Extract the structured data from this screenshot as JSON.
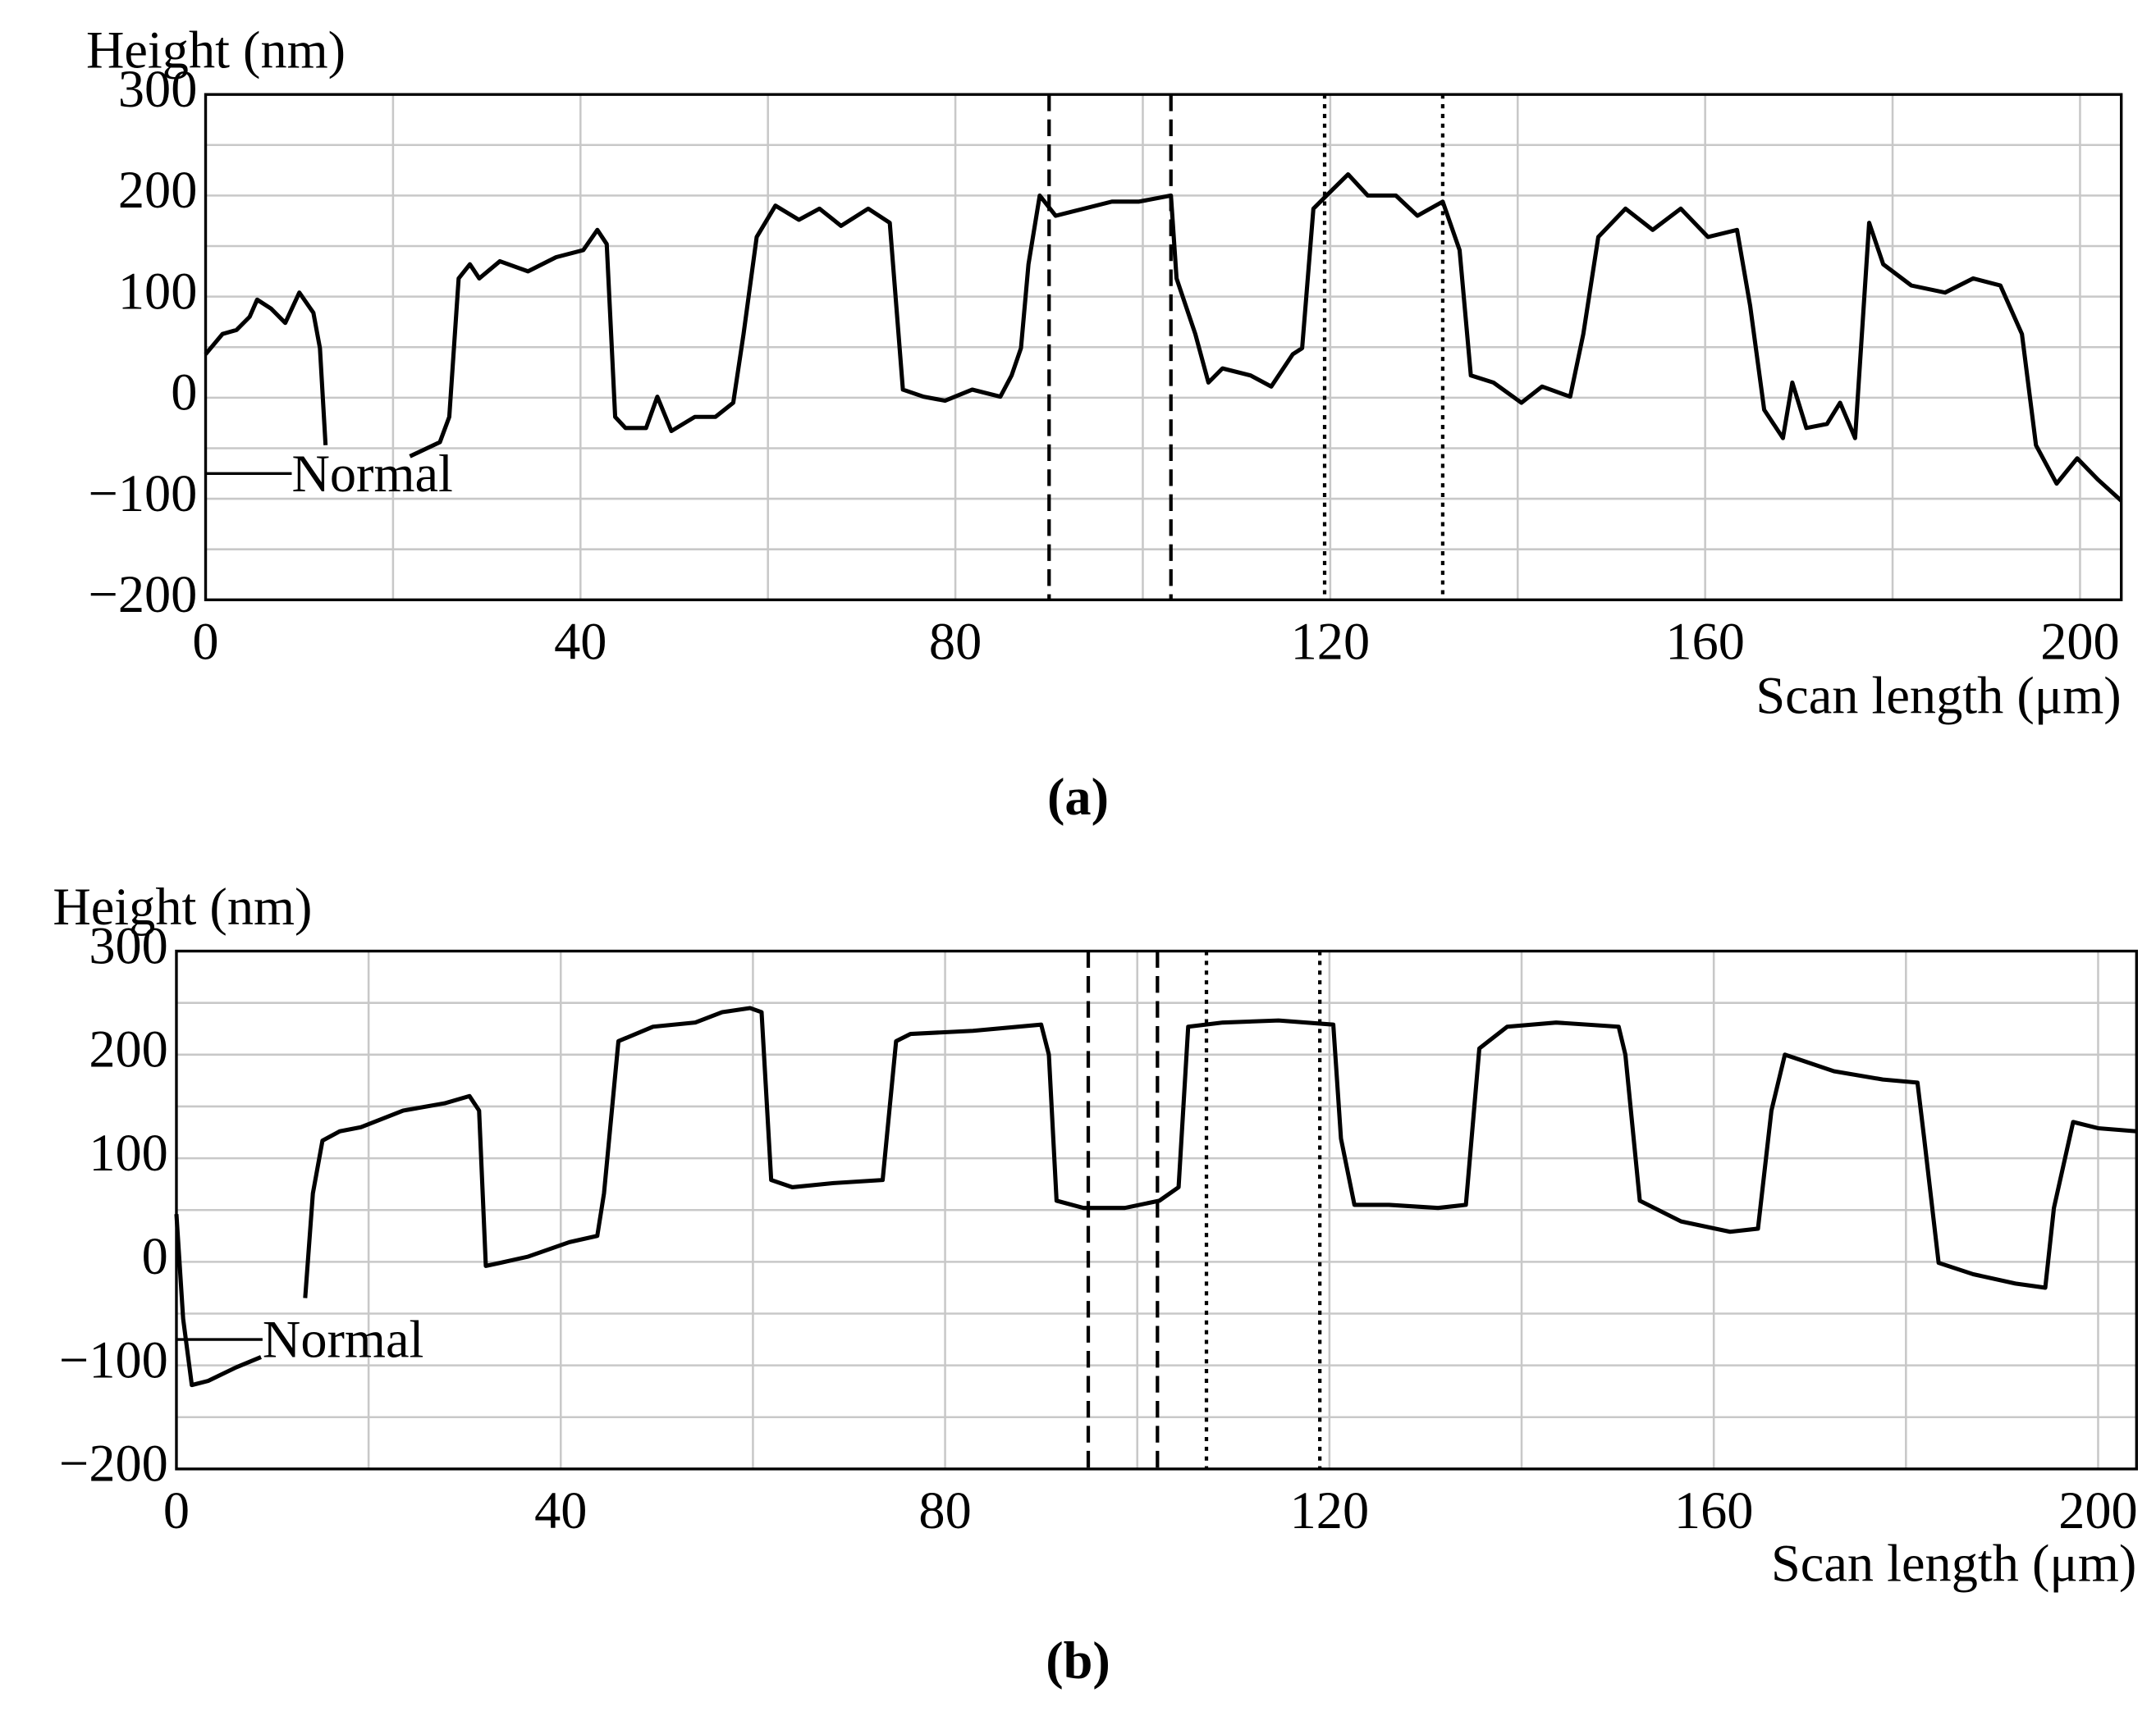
{
  "chart_data": [
    {
      "type": "line",
      "caption": "(a)",
      "ylabel": "Height (nm)",
      "xlabel": "Scan length (μm)",
      "xlim": [
        0,
        204.4
      ],
      "ylim": [
        -200,
        300
      ],
      "xticks": [
        0,
        40,
        80,
        120,
        160,
        200
      ],
      "xminor": [
        20,
        60,
        100,
        140,
        180
      ],
      "yticks": [
        300,
        200,
        100,
        0,
        {
          "value": -100,
          "label": "−100"
        },
        {
          "value": -200,
          "label": "−200"
        }
      ],
      "yminor": [
        250,
        150,
        50,
        -50,
        -150
      ],
      "grid": true,
      "legend": "left",
      "markers": [
        {
          "x": 90,
          "style": "dashed"
        },
        {
          "x": 103,
          "style": "dashed"
        },
        {
          "x": 119.4,
          "style": "dotted"
        },
        {
          "x": 132,
          "style": "dotted"
        }
      ],
      "x": [
        0,
        1.8,
        3.3,
        4.7,
        5.5,
        7,
        8.5,
        10,
        11.5,
        12.2,
        12.8,
        12.9,
        21.8,
        25,
        26,
        27,
        28.2,
        29.2,
        31.4,
        34.4,
        37.4,
        40.3,
        41.8,
        42.8,
        43.7,
        44.8,
        47,
        48.2,
        49.7,
        52.2,
        54.4,
        56.3,
        57.4,
        58.8,
        60.8,
        63.3,
        65.5,
        67.8,
        70.7,
        73,
        74.4,
        76.6,
        78.9,
        81.8,
        84.8,
        86,
        87,
        87.8,
        89,
        90.7,
        93.7,
        96.7,
        99.6,
        103,
        103.6,
        105.6,
        107,
        108.5,
        111.5,
        113.7,
        116,
        117,
        118.2,
        119.6,
        121.9,
        124,
        127,
        129.3,
        132,
        133.8,
        135,
        137.4,
        140.4,
        142.6,
        145.6,
        147,
        148.6,
        151.5,
        154.4,
        157.4,
        160.3,
        163.4,
        164.8,
        166.3,
        168.3,
        169.3,
        170.8,
        173,
        174.4,
        176,
        177.5,
        179,
        182,
        185.6,
        188.6,
        191.5,
        193.8,
        195.3,
        197.5,
        199.7,
        201.9,
        204.4
      ],
      "series": [
        {
          "name": "Normal",
          "color": "#000000",
          "values": [
            43,
            63,
            67,
            80,
            97,
            88,
            74,
            104,
            84,
            49,
            -47,
            null,
            -58,
            -44,
            -19,
            118,
            132,
            118,
            135,
            125,
            139,
            146,
            166,
            152,
            -19,
            -30,
            -30,
            1,
            -33,
            -19,
            -19,
            -5,
            63,
            159,
            190,
            176,
            187,
            170,
            187,
            173,
            8,
            1,
            -3,
            8,
            1,
            22,
            49,
            132,
            200,
            180,
            187,
            194,
            194,
            200,
            118,
            63,
            15,
            29,
            22,
            11,
            43,
            49,
            187,
            200,
            221,
            200,
            200,
            180,
            194,
            146,
            22,
            15,
            -5,
            11,
            1,
            63,
            159,
            187,
            166,
            187,
            159,
            166,
            91,
            -12,
            -40,
            15,
            -30,
            -26,
            -5,
            -40,
            173,
            132,
            111,
            104,
            118,
            111,
            63,
            -47,
            -85,
            -60,
            -81,
            -102
          ]
        }
      ]
    },
    {
      "type": "line",
      "caption": "(b)",
      "ylabel": "Height (nm)",
      "xlabel": "Scan length (μm)",
      "xlim": [
        0,
        204
      ],
      "ylim": [
        -200,
        300
      ],
      "xticks": [
        0,
        40,
        80,
        120,
        160,
        200
      ],
      "xminor": [
        20,
        60,
        100,
        140,
        180
      ],
      "yticks": [
        300,
        200,
        100,
        0,
        {
          "value": -100,
          "label": "−100"
        },
        {
          "value": -200,
          "label": "−200"
        }
      ],
      "yminor": [
        250,
        150,
        50,
        -50,
        -150
      ],
      "grid": true,
      "legend": "left",
      "markers": [
        {
          "x": 94.9,
          "style": "dashed"
        },
        {
          "x": 102.1,
          "style": "dashed"
        },
        {
          "x": 107.2,
          "style": "dotted"
        },
        {
          "x": 119,
          "style": "dotted"
        }
      ],
      "x": [
        0,
        0.7,
        1.6,
        3.3,
        6.2,
        8.8,
        9,
        13.4,
        14.2,
        15.2,
        17,
        19.2,
        23.6,
        27.9,
        30.5,
        31.5,
        32.2,
        33.7,
        36.6,
        40.9,
        43.8,
        44.5,
        46,
        49.6,
        54,
        56.8,
        59.7,
        60.9,
        61.9,
        64.1,
        68.4,
        73.5,
        74.9,
        76.4,
        82.9,
        90,
        90.8,
        91.6,
        94.4,
        98.7,
        102.3,
        104.3,
        105.3,
        108.9,
        114.7,
        120.4,
        121.2,
        122.6,
        126.2,
        131.3,
        134.2,
        135.6,
        138.5,
        143.6,
        150.1,
        150.8,
        152.3,
        156.6,
        161.7,
        164.6,
        166,
        167.4,
        172.5,
        177.6,
        181.2,
        181.9,
        183.4,
        187,
        191.4,
        194.5,
        195.4,
        197.4,
        200,
        204
      ],
      "series": [
        {
          "name": "Normal",
          "color": "#000000",
          "values": [
            46,
            -55,
            -119,
            -115,
            -102,
            -92,
            null,
            -35,
            66,
            117,
            126,
            130,
            146,
            153,
            160,
            146,
            -4,
            -1,
            5,
            19,
            25,
            66,
            213,
            227,
            231,
            241,
            245,
            241,
            79,
            72,
            76,
            79,
            213,
            220,
            223,
            229,
            200,
            59,
            52,
            52,
            59,
            72,
            227,
            231,
            233,
            229,
            119,
            55,
            55,
            52,
            55,
            206,
            227,
            231,
            227,
            200,
            59,
            39,
            29,
            32,
            146,
            200,
            184,
            176,
            173,
            119,
            -1,
            -12,
            -21,
            -25,
            52,
            135,
            129,
            126
          ]
        }
      ]
    }
  ]
}
